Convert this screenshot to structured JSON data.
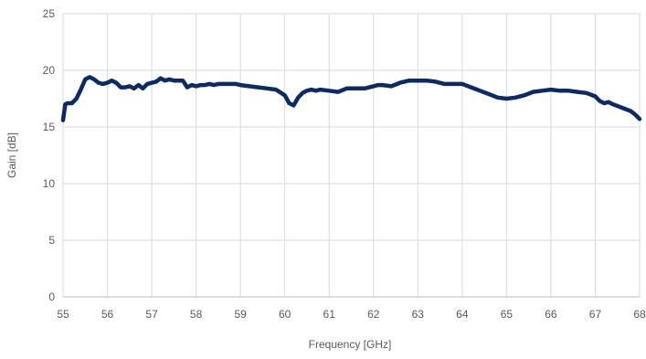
{
  "chart_data": {
    "type": "line",
    "title": "",
    "xlabel": "Frequency [GHz]",
    "ylabel": "Gain [dB]",
    "xlim": [
      55,
      68
    ],
    "ylim": [
      0,
      25
    ],
    "xticks": [
      55,
      56,
      57,
      58,
      59,
      60,
      61,
      62,
      63,
      64,
      65,
      66,
      67,
      68
    ],
    "yticks": [
      0,
      5,
      10,
      15,
      20,
      25
    ],
    "grid": "vertical-and-horizontal",
    "legend": "none",
    "colors": {
      "series": "#0d2b5e",
      "grid": "#d9d9d9",
      "axis": "#bfbfbf",
      "text": "#595959"
    },
    "series": [
      {
        "x": [
          55.0,
          55.05,
          55.1,
          55.2,
          55.3,
          55.4,
          55.5,
          55.6,
          55.7,
          55.8,
          55.9,
          56.0,
          56.1,
          56.2,
          56.3,
          56.4,
          56.5,
          56.6,
          56.7,
          56.8,
          56.9,
          57.0,
          57.1,
          57.2,
          57.3,
          57.4,
          57.5,
          57.6,
          57.7,
          57.8,
          57.9,
          58.0,
          58.1,
          58.2,
          58.3,
          58.4,
          58.5,
          58.6,
          58.7,
          58.8,
          58.9,
          59.0,
          59.2,
          59.4,
          59.6,
          59.8,
          60.0,
          60.1,
          60.2,
          60.3,
          60.4,
          60.5,
          60.6,
          60.7,
          60.8,
          61.0,
          61.2,
          61.4,
          61.5,
          61.6,
          61.8,
          62.0,
          62.1,
          62.2,
          62.4,
          62.6,
          62.8,
          63.0,
          63.2,
          63.4,
          63.6,
          63.8,
          64.0,
          64.2,
          64.4,
          64.6,
          64.8,
          65.0,
          65.2,
          65.4,
          65.6,
          65.8,
          66.0,
          66.2,
          66.4,
          66.6,
          66.8,
          67.0,
          67.1,
          67.2,
          67.3,
          67.4,
          67.6,
          67.8,
          67.9,
          68.0
        ],
        "y": [
          15.6,
          17.0,
          17.1,
          17.1,
          17.5,
          18.3,
          19.2,
          19.4,
          19.2,
          18.9,
          18.8,
          18.9,
          19.1,
          18.9,
          18.5,
          18.5,
          18.6,
          18.4,
          18.7,
          18.4,
          18.8,
          18.9,
          19.0,
          19.3,
          19.1,
          19.2,
          19.1,
          19.1,
          19.1,
          18.5,
          18.7,
          18.6,
          18.7,
          18.7,
          18.8,
          18.7,
          18.8,
          18.8,
          18.8,
          18.8,
          18.8,
          18.7,
          18.6,
          18.5,
          18.4,
          18.3,
          17.8,
          17.1,
          16.9,
          17.6,
          18.0,
          18.2,
          18.3,
          18.2,
          18.3,
          18.2,
          18.1,
          18.4,
          18.4,
          18.4,
          18.4,
          18.6,
          18.7,
          18.7,
          18.6,
          18.9,
          19.1,
          19.1,
          19.1,
          19.0,
          18.8,
          18.8,
          18.8,
          18.5,
          18.2,
          17.9,
          17.6,
          17.5,
          17.6,
          17.8,
          18.1,
          18.2,
          18.3,
          18.2,
          18.2,
          18.1,
          18.0,
          17.7,
          17.3,
          17.1,
          17.2,
          17.0,
          16.7,
          16.4,
          16.1,
          15.7
        ]
      }
    ]
  }
}
